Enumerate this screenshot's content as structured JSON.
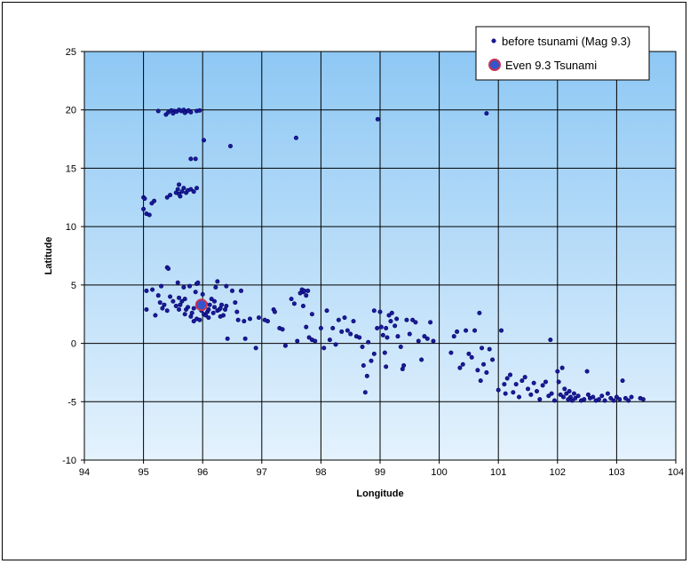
{
  "chart_data": {
    "type": "scatter",
    "xlabel": "Longitude",
    "ylabel": "Latitude",
    "xlim": [
      94,
      104
    ],
    "ylim": [
      -10,
      25
    ],
    "xticks": [
      94,
      95,
      96,
      97,
      98,
      99,
      100,
      101,
      102,
      103,
      104
    ],
    "yticks": [
      -10,
      -5,
      0,
      5,
      10,
      15,
      20,
      25
    ],
    "grid": true,
    "legend_position": "top-right",
    "colors": {
      "plot_gradient_top": "#8ec8f4",
      "plot_gradient_bottom": "#e4f2fd",
      "grid": "#000000",
      "marker": "#1a1a99",
      "marker_edge": "#000066",
      "highlight_fill": "#3355cc",
      "highlight_edge": "#cc3355"
    },
    "series": [
      {
        "name": "before tsunami (Mag 9.3)",
        "marker": "circle-small",
        "points": [
          [
            95.25,
            19.9
          ],
          [
            95.38,
            19.6
          ],
          [
            95.42,
            19.8
          ],
          [
            95.47,
            19.95
          ],
          [
            95.52,
            19.9
          ],
          [
            95.56,
            19.85
          ],
          [
            95.6,
            20.0
          ],
          [
            95.64,
            19.9
          ],
          [
            95.68,
            20.0
          ],
          [
            95.72,
            19.85
          ],
          [
            95.76,
            19.95
          ],
          [
            95.8,
            19.8
          ],
          [
            95.9,
            19.9
          ],
          [
            95.95,
            19.95
          ],
          [
            95.5,
            19.7
          ],
          [
            95.7,
            19.75
          ],
          [
            98.96,
            19.2
          ],
          [
            100.8,
            19.7
          ],
          [
            96.02,
            17.4
          ],
          [
            96.47,
            16.9
          ],
          [
            97.58,
            17.6
          ],
          [
            95.8,
            15.8
          ],
          [
            95.88,
            15.8
          ],
          [
            95.4,
            12.5
          ],
          [
            95.45,
            12.7
          ],
          [
            95.55,
            12.9
          ],
          [
            95.58,
            13.2
          ],
          [
            95.6,
            13.6
          ],
          [
            95.62,
            12.6
          ],
          [
            95.65,
            13.0
          ],
          [
            95.68,
            13.3
          ],
          [
            95.72,
            12.9
          ],
          [
            95.75,
            13.1
          ],
          [
            95.8,
            13.2
          ],
          [
            95.85,
            13.0
          ],
          [
            95.9,
            13.3
          ],
          [
            95.6,
            12.8
          ],
          [
            95.0,
            12.5
          ],
          [
            95.02,
            12.4
          ],
          [
            95.05,
            11.1
          ],
          [
            95.1,
            11.0
          ],
          [
            95.14,
            12.0
          ],
          [
            95.18,
            12.2
          ],
          [
            95.0,
            11.5
          ],
          [
            95.4,
            6.5
          ],
          [
            95.42,
            6.4
          ],
          [
            95.05,
            4.5
          ],
          [
            95.05,
            2.9
          ],
          [
            95.15,
            4.6
          ],
          [
            95.2,
            2.4
          ],
          [
            95.25,
            4.1
          ],
          [
            95.28,
            3.5
          ],
          [
            95.3,
            4.9
          ],
          [
            95.32,
            3.0
          ],
          [
            95.35,
            3.3
          ],
          [
            95.4,
            2.8
          ],
          [
            95.45,
            4.0
          ],
          [
            95.5,
            3.6
          ],
          [
            95.55,
            3.2
          ],
          [
            95.58,
            5.2
          ],
          [
            95.6,
            3.9
          ],
          [
            95.62,
            3.3
          ],
          [
            95.65,
            3.6
          ],
          [
            95.68,
            4.8
          ],
          [
            95.7,
            2.5
          ],
          [
            95.72,
            2.9
          ],
          [
            95.75,
            3.1
          ],
          [
            95.78,
            4.9
          ],
          [
            95.8,
            2.3
          ],
          [
            95.82,
            2.6
          ],
          [
            95.85,
            3.0
          ],
          [
            95.88,
            4.4
          ],
          [
            95.9,
            5.1
          ],
          [
            95.92,
            5.2
          ],
          [
            95.95,
            3.1
          ],
          [
            95.98,
            2.8
          ],
          [
            96.0,
            3.0
          ],
          [
            96.02,
            2.5
          ],
          [
            96.05,
            3.4
          ],
          [
            96.08,
            2.7
          ],
          [
            96.1,
            2.9
          ],
          [
            96.12,
            3.3
          ],
          [
            96.15,
            3.8
          ],
          [
            96.18,
            2.6
          ],
          [
            96.2,
            3.1
          ],
          [
            96.22,
            4.8
          ],
          [
            96.25,
            2.8
          ],
          [
            96.28,
            2.9
          ],
          [
            96.3,
            3.0
          ],
          [
            96.32,
            3.3
          ],
          [
            96.35,
            2.4
          ],
          [
            96.38,
            2.9
          ],
          [
            96.4,
            4.9
          ],
          [
            96.42,
            0.4
          ],
          [
            96.5,
            4.5
          ],
          [
            96.55,
            3.5
          ],
          [
            96.58,
            2.7
          ],
          [
            96.6,
            2.0
          ],
          [
            96.65,
            4.5
          ],
          [
            96.7,
            1.9
          ],
          [
            96.72,
            0.4
          ],
          [
            96.8,
            2.1
          ],
          [
            96.9,
            -0.4
          ],
          [
            96.95,
            2.2
          ],
          [
            96.1,
            2.2
          ],
          [
            95.9,
            2.1
          ],
          [
            96.3,
            2.3
          ],
          [
            95.7,
            3.8
          ],
          [
            96.0,
            4.2
          ],
          [
            96.2,
            3.6
          ],
          [
            96.4,
            3.2
          ],
          [
            95.85,
            1.9
          ],
          [
            96.25,
            5.3
          ],
          [
            95.95,
            2.0
          ],
          [
            96.05,
            2.4
          ],
          [
            95.6,
            2.9
          ],
          [
            97.05,
            2.0
          ],
          [
            97.1,
            1.9
          ],
          [
            97.2,
            2.9
          ],
          [
            97.22,
            2.7
          ],
          [
            97.3,
            1.3
          ],
          [
            97.35,
            1.2
          ],
          [
            97.4,
            -0.2
          ],
          [
            97.5,
            3.8
          ],
          [
            97.55,
            3.4
          ],
          [
            97.6,
            0.2
          ],
          [
            97.65,
            4.3
          ],
          [
            97.68,
            4.6
          ],
          [
            97.7,
            4.4
          ],
          [
            97.72,
            4.5
          ],
          [
            97.75,
            4.1
          ],
          [
            97.78,
            4.5
          ],
          [
            97.8,
            0.5
          ],
          [
            97.85,
            0.3
          ],
          [
            97.9,
            0.2
          ],
          [
            97.7,
            3.2
          ],
          [
            97.75,
            1.4
          ],
          [
            97.85,
            2.5
          ],
          [
            98.0,
            1.3
          ],
          [
            98.05,
            -0.4
          ],
          [
            98.1,
            2.8
          ],
          [
            98.15,
            0.3
          ],
          [
            98.2,
            1.3
          ],
          [
            98.3,
            2.0
          ],
          [
            98.35,
            1.0
          ],
          [
            98.4,
            2.2
          ],
          [
            98.5,
            0.8
          ],
          [
            98.55,
            1.9
          ],
          [
            98.6,
            0.6
          ],
          [
            98.65,
            0.5
          ],
          [
            98.7,
            -0.3
          ],
          [
            98.72,
            -1.9
          ],
          [
            98.75,
            -4.2
          ],
          [
            98.78,
            -2.8
          ],
          [
            98.8,
            0.1
          ],
          [
            98.85,
            -1.5
          ],
          [
            98.9,
            2.8
          ],
          [
            98.95,
            1.3
          ],
          [
            99.0,
            2.7
          ],
          [
            99.02,
            1.4
          ],
          [
            99.05,
            0.7
          ],
          [
            99.08,
            -0.8
          ],
          [
            99.1,
            -2.0
          ],
          [
            99.12,
            0.5
          ],
          [
            99.15,
            2.4
          ],
          [
            99.18,
            1.9
          ],
          [
            99.2,
            2.6
          ],
          [
            99.25,
            1.5
          ],
          [
            99.28,
            2.1
          ],
          [
            99.3,
            0.6
          ],
          [
            99.35,
            -0.3
          ],
          [
            99.38,
            -2.2
          ],
          [
            99.4,
            -1.9
          ],
          [
            99.45,
            2.0
          ],
          [
            99.5,
            0.8
          ],
          [
            99.55,
            2.0
          ],
          [
            99.6,
            1.8
          ],
          [
            99.65,
            0.2
          ],
          [
            99.7,
            -1.4
          ],
          [
            99.75,
            0.6
          ],
          [
            99.8,
            0.4
          ],
          [
            99.85,
            1.8
          ],
          [
            99.9,
            0.2
          ],
          [
            98.25,
            -0.1
          ],
          [
            98.45,
            1.1
          ],
          [
            98.9,
            -0.9
          ],
          [
            99.1,
            1.3
          ],
          [
            100.2,
            -0.8
          ],
          [
            100.25,
            0.6
          ],
          [
            100.3,
            1.0
          ],
          [
            100.35,
            -2.1
          ],
          [
            100.4,
            -1.8
          ],
          [
            100.45,
            1.1
          ],
          [
            100.5,
            -0.9
          ],
          [
            100.55,
            -1.2
          ],
          [
            100.6,
            1.1
          ],
          [
            100.65,
            -2.3
          ],
          [
            100.7,
            -3.2
          ],
          [
            100.72,
            -0.4
          ],
          [
            100.75,
            -1.8
          ],
          [
            100.8,
            -2.5
          ],
          [
            100.85,
            -0.5
          ],
          [
            100.9,
            -1.4
          ],
          [
            100.68,
            2.6
          ],
          [
            101.0,
            -4.0
          ],
          [
            101.05,
            1.1
          ],
          [
            101.1,
            -3.5
          ],
          [
            101.12,
            -4.3
          ],
          [
            101.15,
            -3.0
          ],
          [
            101.2,
            -2.7
          ],
          [
            101.25,
            -4.2
          ],
          [
            101.3,
            -3.5
          ],
          [
            101.35,
            -4.6
          ],
          [
            101.4,
            -3.2
          ],
          [
            101.45,
            -2.9
          ],
          [
            101.5,
            -3.9
          ],
          [
            101.55,
            -4.4
          ],
          [
            101.6,
            -3.4
          ],
          [
            101.65,
            -4.1
          ],
          [
            101.7,
            -4.8
          ],
          [
            101.75,
            -3.6
          ],
          [
            101.8,
            -3.3
          ],
          [
            101.85,
            -4.5
          ],
          [
            101.88,
            0.3
          ],
          [
            101.9,
            -4.3
          ],
          [
            101.95,
            -4.9
          ],
          [
            102.0,
            -2.4
          ],
          [
            102.02,
            -3.3
          ],
          [
            102.05,
            -4.4
          ],
          [
            102.08,
            -2.1
          ],
          [
            102.1,
            -4.6
          ],
          [
            102.12,
            -3.9
          ],
          [
            102.15,
            -4.3
          ],
          [
            102.18,
            -4.8
          ],
          [
            102.2,
            -4.1
          ],
          [
            102.22,
            -4.6
          ],
          [
            102.25,
            -4.9
          ],
          [
            102.28,
            -4.3
          ],
          [
            102.3,
            -4.7
          ],
          [
            102.35,
            -4.5
          ],
          [
            102.4,
            -4.9
          ],
          [
            102.45,
            -4.8
          ],
          [
            102.5,
            -2.4
          ],
          [
            102.52,
            -4.4
          ],
          [
            102.55,
            -4.7
          ],
          [
            102.6,
            -4.6
          ],
          [
            102.65,
            -4.9
          ],
          [
            102.7,
            -4.8
          ],
          [
            102.75,
            -4.5
          ],
          [
            102.8,
            -4.9
          ],
          [
            102.85,
            -4.3
          ],
          [
            102.9,
            -4.7
          ],
          [
            102.95,
            -4.9
          ],
          [
            103.0,
            -4.6
          ],
          [
            103.05,
            -4.8
          ],
          [
            103.1,
            -3.2
          ],
          [
            103.15,
            -4.7
          ],
          [
            103.2,
            -4.9
          ],
          [
            103.25,
            -4.6
          ],
          [
            103.4,
            -4.7
          ],
          [
            103.45,
            -4.8
          ]
        ]
      },
      {
        "name": "Even 9.3 Tsunami",
        "marker": "circle-large",
        "points": [
          [
            95.98,
            3.3
          ]
        ]
      }
    ]
  }
}
